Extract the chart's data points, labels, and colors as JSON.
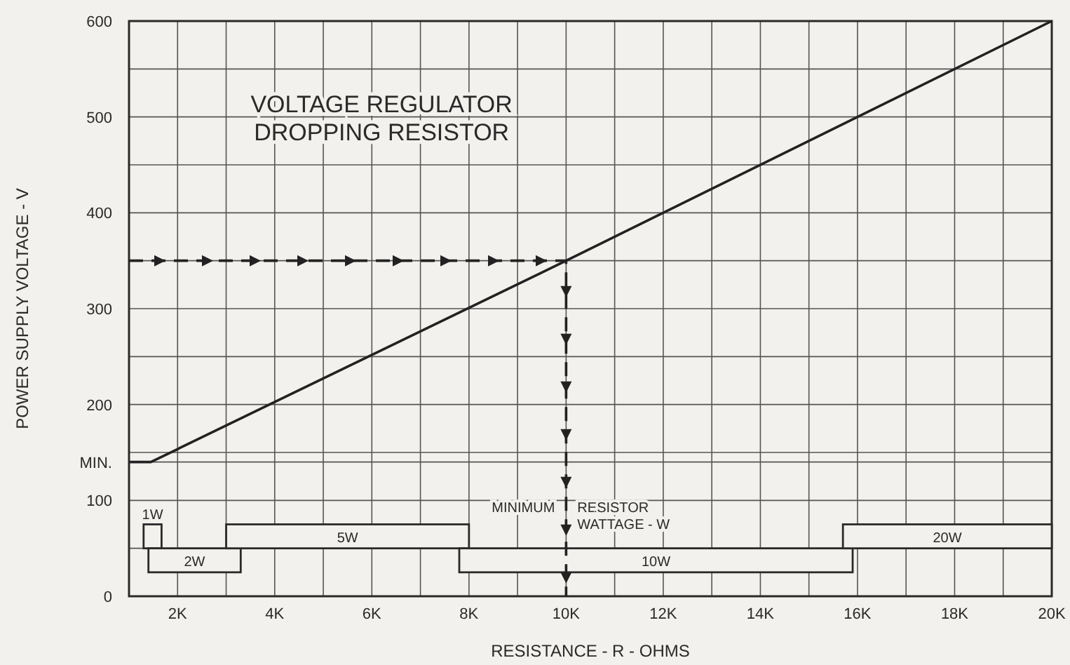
{
  "chart_data": {
    "type": "line",
    "title": "VOLTAGE REGULATOR\nDROPPING RESISTOR",
    "xlabel": "RESISTANCE - R - OHMS",
    "ylabel": "POWER SUPPLY VOLTAGE - V",
    "xlim": [
      1000,
      20000
    ],
    "ylim": [
      0,
      600
    ],
    "xticks": [
      {
        "value": 2000,
        "label": "2K"
      },
      {
        "value": 3000,
        "label": null
      },
      {
        "value": 4000,
        "label": "4K"
      },
      {
        "value": 5000,
        "label": null
      },
      {
        "value": 6000,
        "label": "6K"
      },
      {
        "value": 7000,
        "label": null
      },
      {
        "value": 8000,
        "label": "8K"
      },
      {
        "value": 9000,
        "label": null
      },
      {
        "value": 10000,
        "label": "10K"
      },
      {
        "value": 11000,
        "label": null
      },
      {
        "value": 12000,
        "label": "12K"
      },
      {
        "value": 13000,
        "label": null
      },
      {
        "value": 14000,
        "label": "14K"
      },
      {
        "value": 15000,
        "label": null
      },
      {
        "value": 16000,
        "label": "16K"
      },
      {
        "value": 17000,
        "label": null
      },
      {
        "value": 18000,
        "label": "18K"
      },
      {
        "value": 19000,
        "label": null
      },
      {
        "value": 20000,
        "label": "20K"
      }
    ],
    "yticks": [
      0,
      {
        "value": 50,
        "label": null
      },
      100,
      {
        "value": 140,
        "label": "MIN."
      },
      {
        "value": 150,
        "label": null
      },
      200,
      {
        "value": 250,
        "label": null
      },
      300,
      {
        "value": 350,
        "label": null
      },
      400,
      {
        "value": 450,
        "label": null
      },
      500,
      {
        "value": 550,
        "label": null
      },
      600
    ],
    "grid": true,
    "series": [
      {
        "color": "#222222",
        "x": [
          1000,
          1450,
          10000,
          20000
        ],
        "values": [
          140,
          140,
          350,
          600
        ],
        "line_style": "solid"
      },
      {
        "color": "#222222",
        "x": [
          1000,
          10000,
          10000
        ],
        "values": [
          350,
          350,
          0
        ],
        "line_style": "dashed"
      }
    ],
    "bands": [
      {
        "axis": "x",
        "from": 1300,
        "to": 1670,
        "label": "1W"
      },
      {
        "axis": "x",
        "from": 1400,
        "to": 3300,
        "label": "2W"
      },
      {
        "axis": "x",
        "from": 3000,
        "to": 8000,
        "label": "5W"
      },
      {
        "axis": "x",
        "from": 7800,
        "to": 15900,
        "label": "10W"
      },
      {
        "axis": "x",
        "from": 15700,
        "to": 20000,
        "label": "20W"
      }
    ],
    "annotations": [
      "MINIMUM",
      "RESISTOR\nWATTAGE - W"
    ]
  }
}
